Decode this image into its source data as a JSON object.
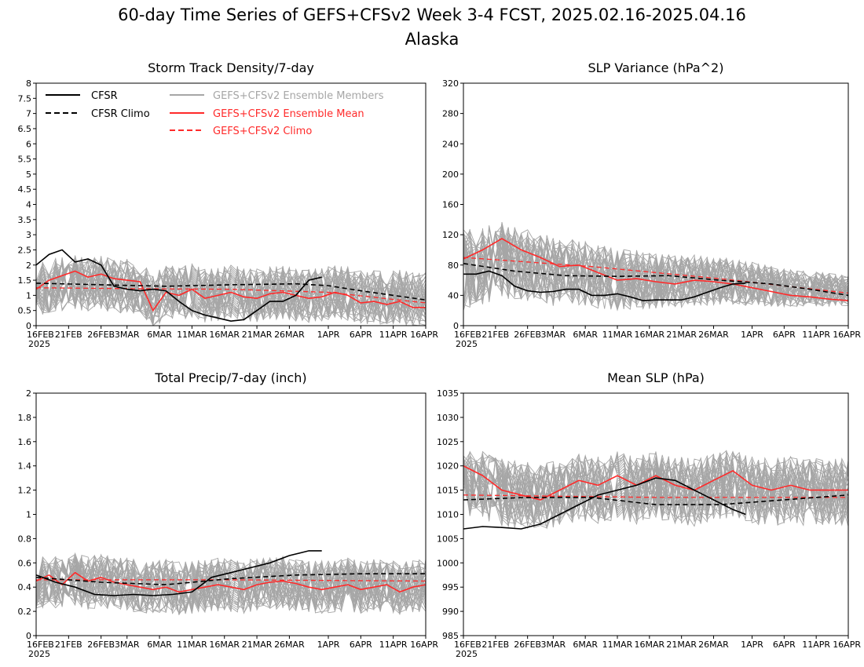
{
  "figure": {
    "title": "60-day Time Series of GEFS+CFSv2 Week 3-4 FCST, 2025.02.16-2025.04.16",
    "subtitle": "Alaska"
  },
  "colors": {
    "cfsr": "#000000",
    "members": "#a6a6a6",
    "mean": "#ff2a2a",
    "climo_model": "#ff2a2a"
  },
  "x_ticks": [
    "16FEB",
    "21FEB",
    "26FEB",
    "3MAR",
    "6MAR",
    "11MAR",
    "16MAR",
    "21MAR",
    "26MAR",
    "1APR",
    "6APR",
    "11APR",
    "16APR"
  ],
  "x_year": "2025",
  "legend": {
    "cfsr": "CFSR",
    "cfsr_climo": "CFSR Climo",
    "members": "GEFS+CFSv2 Ensemble Members",
    "mean": "GEFS+CFSv2 Ensemble Mean",
    "climo": "GEFS+CFSv2 Climo"
  },
  "chart_data": [
    {
      "type": "line",
      "title": "Storm Track Density/7-day",
      "ylim": [
        0,
        8
      ],
      "yticks": [
        "0",
        "0.5",
        "1",
        "1.5",
        "2",
        "2.5",
        "3",
        "3.5",
        "4",
        "4.5",
        "5",
        "5.5",
        "6",
        "6.5",
        "7",
        "7.5",
        "8"
      ],
      "legend_placement": "top",
      "members_band": {
        "center": 1.1,
        "spread": 0.9
      },
      "series": [
        {
          "name": "CFSR",
          "day": [
            0,
            2,
            4,
            6,
            8,
            10,
            12,
            14,
            16,
            18,
            20,
            22,
            24,
            26,
            28,
            30,
            32,
            34,
            36,
            38,
            40,
            42,
            44
          ],
          "values": [
            2.0,
            2.35,
            2.5,
            2.1,
            2.2,
            2.0,
            1.3,
            1.2,
            1.15,
            1.2,
            1.15,
            0.8,
            0.5,
            0.35,
            0.25,
            0.15,
            0.2,
            0.5,
            0.8,
            0.8,
            1.0,
            1.5,
            1.6
          ]
        },
        {
          "name": "CFSR Climo",
          "day": [
            0,
            10,
            20,
            30,
            40,
            45,
            50,
            55,
            60
          ],
          "values": [
            1.4,
            1.35,
            1.3,
            1.35,
            1.38,
            1.32,
            1.15,
            1.0,
            0.85
          ]
        },
        {
          "name": "GEFS+CFSv2 Ensemble Mean",
          "day": [
            0,
            2,
            4,
            6,
            8,
            10,
            12,
            14,
            16,
            18,
            20,
            22,
            24,
            26,
            28,
            30,
            32,
            34,
            36,
            38,
            40,
            42,
            44,
            46,
            48,
            50,
            52,
            54,
            56,
            58,
            60
          ],
          "values": [
            1.2,
            1.5,
            1.65,
            1.8,
            1.6,
            1.7,
            1.55,
            1.5,
            1.45,
            0.5,
            1.1,
            1.0,
            1.2,
            0.9,
            1.0,
            1.1,
            0.95,
            0.9,
            1.05,
            1.1,
            1.0,
            0.9,
            0.95,
            1.1,
            1.0,
            0.75,
            0.8,
            0.7,
            0.8,
            0.6,
            0.6
          ]
        },
        {
          "name": "GEFS+CFSv2 Climo",
          "day": [
            0,
            15,
            30,
            45,
            60
          ],
          "values": [
            1.25,
            1.22,
            1.2,
            1.1,
            0.75
          ]
        }
      ]
    },
    {
      "type": "line",
      "title": "SLP Variance (hPa^2)",
      "ylim": [
        0,
        320
      ],
      "yticks": [
        "0",
        "40",
        "80",
        "120",
        "160",
        "200",
        "240",
        "280",
        "320"
      ],
      "members_band": {
        "center": 60,
        "spread": 45
      },
      "series": [
        {
          "name": "CFSR",
          "day": [
            0,
            2,
            4,
            6,
            8,
            10,
            12,
            14,
            16,
            18,
            20,
            22,
            24,
            26,
            28,
            30,
            32,
            34,
            36,
            38,
            40,
            42,
            44
          ],
          "values": [
            68,
            68,
            72,
            66,
            52,
            46,
            44,
            45,
            48,
            48,
            40,
            40,
            42,
            38,
            33,
            34,
            34,
            34,
            38,
            44,
            50,
            55,
            56
          ]
        },
        {
          "name": "CFSR Climo",
          "day": [
            0,
            8,
            16,
            24,
            32,
            40,
            48,
            54,
            60
          ],
          "values": [
            82,
            72,
            66,
            65,
            66,
            60,
            55,
            48,
            40
          ]
        },
        {
          "name": "GEFS+CFSv2 Ensemble Mean",
          "day": [
            0,
            3,
            6,
            9,
            12,
            15,
            18,
            21,
            24,
            27,
            30,
            33,
            36,
            39,
            42,
            45,
            48,
            51,
            54,
            57,
            60
          ],
          "values": [
            88,
            100,
            115,
            100,
            90,
            78,
            80,
            70,
            60,
            62,
            58,
            55,
            60,
            58,
            55,
            50,
            45,
            40,
            38,
            35,
            33
          ]
        },
        {
          "name": "GEFS+CFSv2 Climo",
          "day": [
            0,
            20,
            40,
            60
          ],
          "values": [
            90,
            78,
            62,
            43
          ]
        }
      ]
    },
    {
      "type": "line",
      "title": "Total Precip/7-day (inch)",
      "ylim": [
        0,
        2
      ],
      "yticks": [
        "0",
        "0.2",
        "0.4",
        "0.6",
        "0.8",
        "1",
        "1.2",
        "1.4",
        "1.6",
        "1.8",
        "2"
      ],
      "members_band": {
        "center": 0.42,
        "spread": 0.22
      },
      "series": [
        {
          "name": "CFSR",
          "day": [
            0,
            3,
            6,
            9,
            12,
            15,
            18,
            21,
            24,
            27,
            30,
            33,
            36,
            39,
            42,
            44
          ],
          "values": [
            0.5,
            0.44,
            0.4,
            0.34,
            0.33,
            0.34,
            0.33,
            0.34,
            0.36,
            0.48,
            0.52,
            0.56,
            0.6,
            0.66,
            0.7,
            0.7
          ]
        },
        {
          "name": "CFSR Climo",
          "day": [
            0,
            10,
            20,
            30,
            40,
            50,
            60
          ],
          "values": [
            0.48,
            0.44,
            0.42,
            0.47,
            0.5,
            0.51,
            0.51
          ]
        },
        {
          "name": "GEFS+CFSv2 Ensemble Mean",
          "day": [
            0,
            2,
            4,
            6,
            8,
            10,
            12,
            14,
            16,
            18,
            20,
            22,
            24,
            26,
            28,
            30,
            32,
            34,
            36,
            38,
            40,
            42,
            44,
            46,
            48,
            50,
            52,
            54,
            56,
            58,
            60
          ],
          "values": [
            0.45,
            0.5,
            0.42,
            0.52,
            0.45,
            0.48,
            0.44,
            0.42,
            0.4,
            0.38,
            0.4,
            0.36,
            0.38,
            0.4,
            0.42,
            0.4,
            0.38,
            0.42,
            0.44,
            0.45,
            0.43,
            0.4,
            0.38,
            0.4,
            0.42,
            0.38,
            0.4,
            0.42,
            0.36,
            0.4,
            0.42
          ]
        },
        {
          "name": "GEFS+CFSv2 Climo",
          "day": [
            0,
            30,
            60
          ],
          "values": [
            0.46,
            0.46,
            0.45
          ]
        }
      ]
    },
    {
      "type": "line",
      "title": "Mean SLP (hPa)",
      "ylim": [
        985,
        1035
      ],
      "yticks": [
        "985",
        "990",
        "995",
        "1000",
        "1005",
        "1010",
        "1015",
        "1020",
        "1025",
        "1030",
        "1035"
      ],
      "members_band": {
        "center": 1014,
        "spread": 7
      },
      "series": [
        {
          "name": "CFSR",
          "day": [
            0,
            3,
            6,
            9,
            12,
            15,
            18,
            21,
            24,
            27,
            30,
            33,
            36,
            39,
            42,
            44
          ],
          "values": [
            1007,
            1007.5,
            1007.3,
            1007,
            1008,
            1010,
            1012,
            1014,
            1015,
            1016,
            1017.5,
            1017,
            1015,
            1013,
            1011,
            1010
          ]
        },
        {
          "name": "CFSR Climo",
          "day": [
            0,
            10,
            20,
            30,
            40,
            50,
            60
          ],
          "values": [
            1013,
            1013.5,
            1013.5,
            1012,
            1012,
            1013,
            1014
          ]
        },
        {
          "name": "GEFS+CFSv2 Ensemble Mean",
          "day": [
            0,
            3,
            6,
            9,
            12,
            15,
            18,
            21,
            24,
            27,
            30,
            33,
            36,
            39,
            42,
            45,
            48,
            51,
            54,
            57,
            60
          ],
          "values": [
            1020,
            1018,
            1015,
            1014,
            1013,
            1015,
            1017,
            1016,
            1018,
            1016,
            1018,
            1016,
            1015,
            1017,
            1019,
            1016,
            1015,
            1016,
            1015,
            1015,
            1015
          ]
        },
        {
          "name": "GEFS+CFSv2 Climo",
          "day": [
            0,
            30,
            60
          ],
          "values": [
            1014,
            1013.5,
            1013.5
          ]
        }
      ]
    }
  ]
}
